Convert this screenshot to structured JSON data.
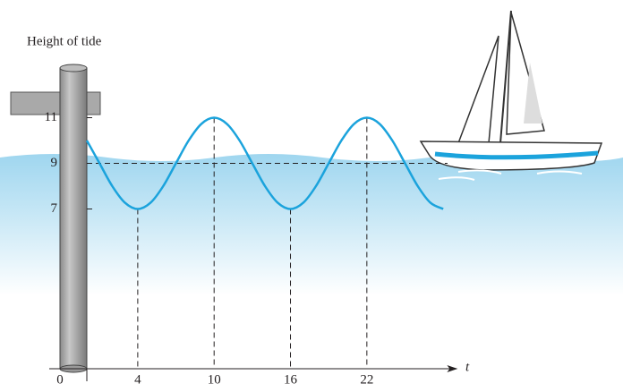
{
  "chart_data": {
    "type": "line",
    "y_label": "Height of tide",
    "x_label": "t",
    "x": [
      0,
      1,
      2,
      3,
      4,
      5,
      6,
      7,
      8,
      9,
      10,
      11,
      12,
      13,
      14,
      15,
      16,
      17,
      18,
      19,
      20,
      21,
      22,
      23,
      24,
      25,
      26,
      27,
      28
    ],
    "series": [
      {
        "color": "#1ba3dc",
        "values": [
          10,
          9,
          8,
          7.27,
          7,
          7.27,
          8,
          9,
          10,
          10.73,
          11,
          10.73,
          10,
          9,
          8,
          7.27,
          7,
          7.27,
          8,
          9,
          10,
          10.73,
          11,
          10.73,
          10,
          9,
          8,
          7.27,
          7
        ]
      }
    ],
    "xlim": [
      0,
      29
    ],
    "ylim": [
      0,
      12
    ],
    "xticks": [
      0,
      4,
      10,
      16,
      22
    ],
    "yticks": [
      7,
      9,
      11
    ]
  }
}
